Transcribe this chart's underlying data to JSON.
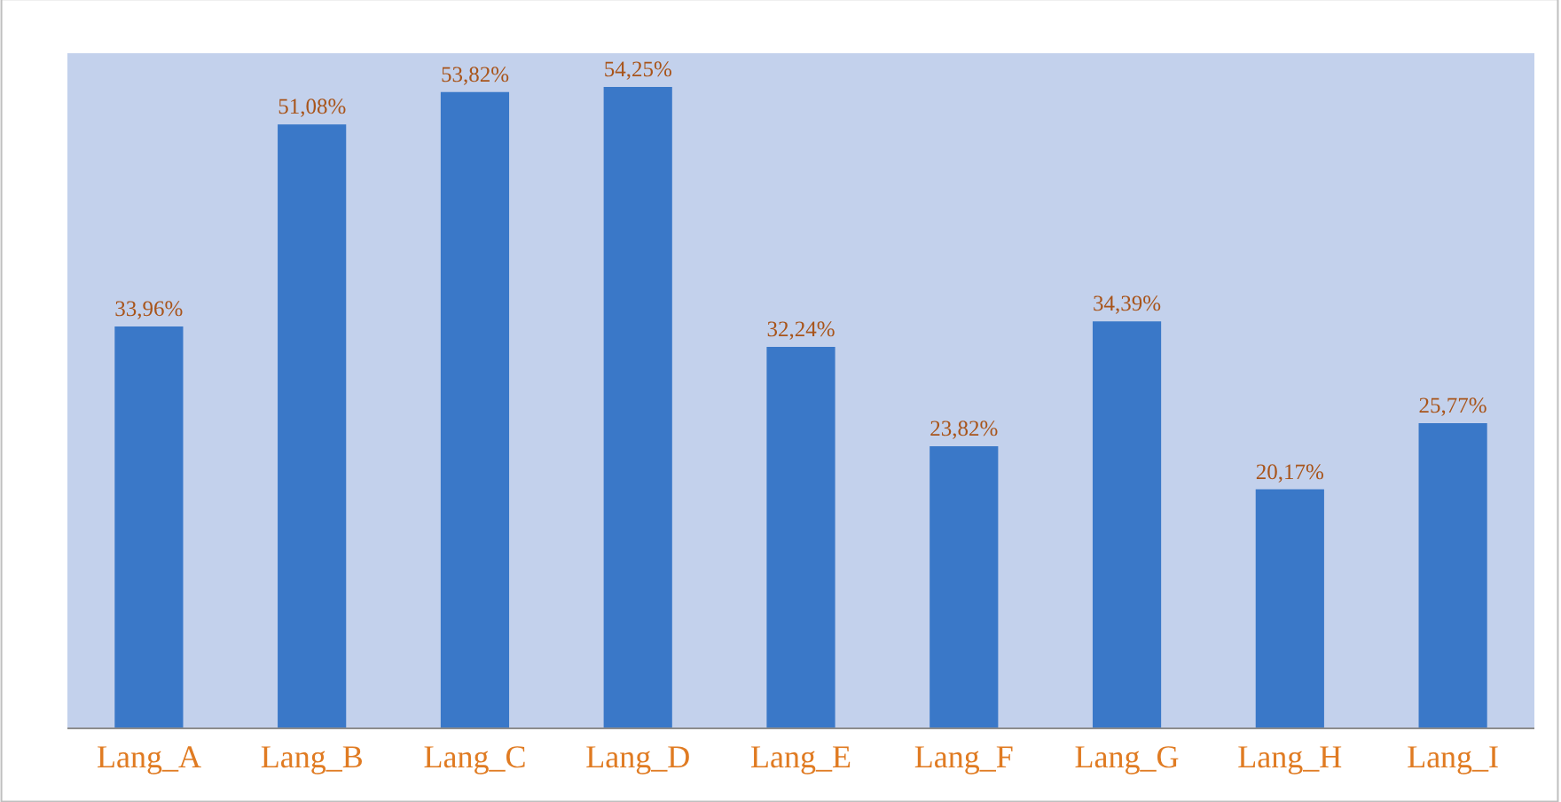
{
  "chart_data": {
    "type": "bar",
    "categories": [
      "Lang_A",
      "Lang_B",
      "Lang_C",
      "Lang_D",
      "Lang_E",
      "Lang_F",
      "Lang_G",
      "Lang_H",
      "Lang_I"
    ],
    "values": [
      33.96,
      51.08,
      53.82,
      54.25,
      32.24,
      23.82,
      34.39,
      20.17,
      25.77
    ],
    "value_labels": [
      "33,96%",
      "51,08%",
      "53,82%",
      "54,25%",
      "32,24%",
      "23,82%",
      "34,39%",
      "20,17%",
      "25,77%"
    ],
    "color": "#3a78c8"
  }
}
